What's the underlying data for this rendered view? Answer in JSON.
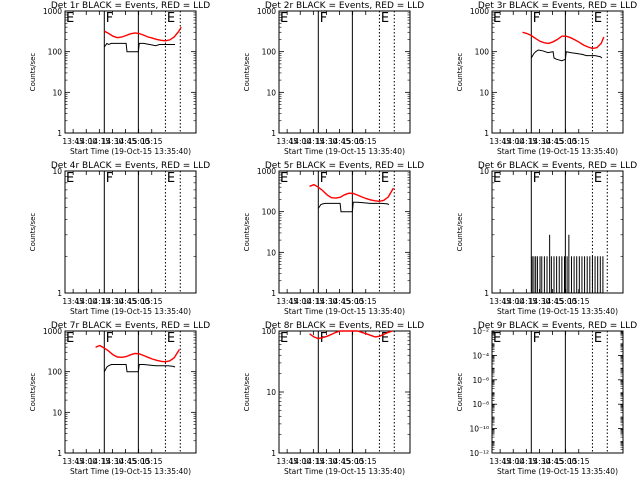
{
  "figure": {
    "x_ticks": [
      "13:45",
      "14:00",
      "14:15",
      "14:30",
      "14:45",
      "15:00",
      "15:15"
    ],
    "x_label": "Start Time (19-Oct-15 13:35:40)",
    "y_label": "Counts/sec",
    "colors": {
      "events": "#000000",
      "lld": "#ff0000"
    }
  },
  "chart_data": [
    {
      "type": "line",
      "title": "Det 1r BLACK = Events, RED = LLD",
      "ylim": [
        1,
        1000
      ],
      "y_ticks": [
        "1",
        "10",
        "100",
        "1000"
      ],
      "log_scale": true,
      "marker_lines": [
        {
          "x": 45,
          "style": "solid",
          "label": "F"
        },
        {
          "x": 84,
          "style": "solid",
          "label": ""
        },
        {
          "x": 115,
          "style": "dotted",
          "label": "E"
        },
        {
          "x": 132,
          "style": "dotted",
          "label": ""
        }
      ],
      "series": [
        {
          "name": "BLACK = Events",
          "color": "#000000",
          "x": [
            45,
            48,
            50,
            53,
            58,
            64,
            70,
            71,
            74,
            80,
            84,
            85,
            90,
            97,
            104,
            108,
            111,
            118,
            124,
            126
          ],
          "y": [
            130,
            160,
            150,
            160,
            160,
            160,
            160,
            100,
            100,
            100,
            100,
            160,
            160,
            150,
            140,
            150,
            150,
            150,
            150,
            150
          ]
        },
        {
          "name": "RED = LLD",
          "color": "#ff0000",
          "x": [
            45,
            50,
            55,
            60,
            65,
            70,
            75,
            80,
            85,
            90,
            95,
            100,
            105,
            110,
            115,
            120,
            125,
            130,
            133
          ],
          "y": [
            320,
            280,
            240,
            220,
            230,
            250,
            275,
            290,
            280,
            255,
            230,
            215,
            200,
            190,
            185,
            195,
            230,
            310,
            400
          ]
        }
      ]
    },
    {
      "type": "line",
      "title": "Det 2r BLACK = Events, RED = LLD",
      "ylim": [
        1,
        1000
      ],
      "y_ticks": [
        "1",
        "10",
        "100",
        "1000"
      ],
      "log_scale": true,
      "marker_lines": [
        {
          "x": 45,
          "style": "solid",
          "label": "F"
        },
        {
          "x": 84,
          "style": "solid",
          "label": ""
        },
        {
          "x": 115,
          "style": "dotted",
          "label": "E"
        },
        {
          "x": 132,
          "style": "dotted",
          "label": ""
        }
      ],
      "series": []
    },
    {
      "type": "line",
      "title": "Det 3r BLACK = Events, RED = LLD",
      "ylim": [
        1,
        1000
      ],
      "y_ticks": [
        "1",
        "10",
        "100",
        "1000"
      ],
      "log_scale": true,
      "marker_lines": [
        {
          "x": 45,
          "style": "solid",
          "label": "F"
        },
        {
          "x": 84,
          "style": "solid",
          "label": ""
        },
        {
          "x": 115,
          "style": "dotted",
          "label": "E"
        },
        {
          "x": 132,
          "style": "dotted",
          "label": ""
        }
      ],
      "series": [
        {
          "name": "BLACK = Events",
          "color": "#000000",
          "x": [
            45,
            48,
            50,
            53,
            58,
            64,
            70,
            71,
            74,
            80,
            84,
            85,
            90,
            97,
            104,
            108,
            111,
            118,
            124,
            126
          ],
          "y": [
            70,
            90,
            100,
            110,
            105,
            95,
            100,
            70,
            65,
            60,
            65,
            100,
            95,
            90,
            85,
            80,
            80,
            80,
            75,
            70
          ]
        },
        {
          "name": "RED = LLD",
          "color": "#ff0000",
          "x": [
            35,
            40,
            45,
            50,
            55,
            60,
            65,
            70,
            75,
            80,
            85,
            90,
            95,
            100,
            105,
            110,
            115,
            120,
            125,
            128
          ],
          "y": [
            300,
            280,
            250,
            210,
            180,
            165,
            160,
            175,
            200,
            240,
            240,
            220,
            195,
            170,
            145,
            130,
            120,
            125,
            160,
            230
          ]
        }
      ]
    },
    {
      "type": "line",
      "title": "Det 4r BLACK = Events, RED = LLD",
      "ylim": [
        1,
        10
      ],
      "y_ticks": [
        "1",
        "10"
      ],
      "log_scale": true,
      "marker_lines": [
        {
          "x": 45,
          "style": "solid",
          "label": "F"
        },
        {
          "x": 84,
          "style": "solid",
          "label": ""
        },
        {
          "x": 115,
          "style": "dotted",
          "label": "E"
        },
        {
          "x": 132,
          "style": "dotted",
          "label": ""
        }
      ],
      "series": []
    },
    {
      "type": "line",
      "title": "Det 5r BLACK = Events, RED = LLD",
      "ylim": [
        1,
        1000
      ],
      "y_ticks": [
        "1",
        "10",
        "100",
        "1000"
      ],
      "log_scale": true,
      "marker_lines": [
        {
          "x": 45,
          "style": "solid",
          "label": "F"
        },
        {
          "x": 84,
          "style": "solid",
          "label": ""
        },
        {
          "x": 115,
          "style": "dotted",
          "label": "E"
        },
        {
          "x": 132,
          "style": "dotted",
          "label": ""
        }
      ],
      "series": [
        {
          "name": "BLACK = Events",
          "color": "#000000",
          "x": [
            45,
            48,
            50,
            53,
            58,
            64,
            70,
            71,
            74,
            80,
            84,
            85,
            90,
            97,
            104,
            108,
            111,
            118,
            124,
            126
          ],
          "y": [
            120,
            150,
            155,
            160,
            160,
            160,
            160,
            100,
            100,
            100,
            100,
            170,
            170,
            165,
            160,
            160,
            160,
            160,
            155,
            150
          ]
        },
        {
          "name": "RED = LLD",
          "color": "#ff0000",
          "x": [
            35,
            40,
            45,
            50,
            55,
            60,
            65,
            70,
            75,
            80,
            85,
            90,
            95,
            100,
            105,
            110,
            115,
            120,
            125,
            131
          ],
          "y": [
            420,
            460,
            400,
            330,
            260,
            220,
            215,
            225,
            260,
            285,
            280,
            255,
            230,
            210,
            195,
            185,
            180,
            190,
            230,
            380
          ]
        }
      ]
    },
    {
      "type": "line",
      "title": "Det 6r BLACK = Events, RED = LLD",
      "ylim": [
        1,
        10
      ],
      "y_ticks": [
        "1",
        "10"
      ],
      "log_scale": true,
      "marker_lines": [
        {
          "x": 45,
          "style": "solid",
          "label": "F"
        },
        {
          "x": 84,
          "style": "solid",
          "label": ""
        },
        {
          "x": 115,
          "style": "dotted",
          "label": "E"
        },
        {
          "x": 132,
          "style": "dotted",
          "label": ""
        }
      ],
      "series": [
        {
          "name": "BLACK = Events",
          "color": "#000000",
          "spikes": true,
          "x": [
            46,
            48,
            50,
            52,
            55,
            57,
            60,
            63,
            66,
            68,
            71,
            74,
            77,
            80,
            83,
            86,
            88,
            91,
            94,
            97,
            100,
            103,
            106,
            109,
            112,
            115,
            118,
            121,
            124,
            127
          ],
          "y": [
            2,
            2,
            2,
            2,
            2,
            2,
            2,
            2,
            3,
            2,
            2,
            2,
            2,
            2,
            2,
            2,
            3,
            2,
            2,
            2,
            2,
            2,
            2,
            2,
            2,
            2,
            2,
            2,
            2,
            2
          ]
        }
      ]
    },
    {
      "type": "line",
      "title": "Det 7r BLACK = Events, RED = LLD",
      "ylim": [
        1,
        1000
      ],
      "y_ticks": [
        "1",
        "10",
        "100",
        "1000"
      ],
      "log_scale": true,
      "marker_lines": [
        {
          "x": 45,
          "style": "solid",
          "label": "F"
        },
        {
          "x": 84,
          "style": "solid",
          "label": ""
        },
        {
          "x": 115,
          "style": "dotted",
          "label": "E"
        },
        {
          "x": 132,
          "style": "dotted",
          "label": ""
        }
      ],
      "series": [
        {
          "name": "BLACK = Events",
          "color": "#000000",
          "x": [
            45,
            48,
            50,
            53,
            58,
            64,
            70,
            71,
            74,
            80,
            84,
            85,
            90,
            97,
            104,
            108,
            111,
            118,
            124,
            126
          ],
          "y": [
            100,
            130,
            140,
            150,
            150,
            150,
            150,
            100,
            100,
            100,
            100,
            150,
            150,
            145,
            140,
            140,
            140,
            140,
            135,
            130
          ]
        },
        {
          "name": "RED = LLD",
          "color": "#ff0000",
          "x": [
            35,
            40,
            45,
            50,
            55,
            60,
            65,
            70,
            75,
            80,
            85,
            90,
            95,
            100,
            105,
            110,
            115,
            120,
            125,
            131
          ],
          "y": [
            400,
            440,
            380,
            320,
            260,
            230,
            225,
            235,
            260,
            280,
            275,
            250,
            225,
            205,
            190,
            180,
            175,
            185,
            220,
            350
          ]
        }
      ]
    },
    {
      "type": "line",
      "title": "Det 8r BLACK = Events, RED = LLD",
      "ylim": [
        1,
        100
      ],
      "y_ticks": [
        "1",
        "10",
        "100"
      ],
      "log_scale": true,
      "marker_lines": [
        {
          "x": 45,
          "style": "solid",
          "label": "F"
        },
        {
          "x": 84,
          "style": "solid",
          "label": ""
        },
        {
          "x": 115,
          "style": "dotted",
          "label": "E"
        },
        {
          "x": 132,
          "style": "dotted",
          "label": ""
        }
      ],
      "series": [
        {
          "name": "RED = LLD",
          "color": "#ff0000",
          "x": [
            35,
            40,
            45,
            50,
            55,
            60,
            65,
            70,
            75,
            80,
            85,
            90,
            95,
            100,
            105,
            110,
            115,
            120,
            125,
            130
          ],
          "y": [
            90,
            80,
            75,
            78,
            82,
            88,
            95,
            100,
            100,
            100,
            100,
            100,
            95,
            90,
            85,
            80,
            82,
            88,
            95,
            100
          ]
        }
      ]
    },
    {
      "type": "line",
      "title": "Det 9r BLACK = Events, RED = LLD",
      "ylim": [
        1e-12,
        0.01
      ],
      "y_ticks": [
        "10⁻¹²",
        "10⁻¹⁰",
        "10⁻⁸",
        "10⁻⁶",
        "10⁻⁴",
        "10⁻²"
      ],
      "log_scale": true,
      "marker_lines": [
        {
          "x": 45,
          "style": "solid",
          "label": "F"
        },
        {
          "x": 84,
          "style": "solid",
          "label": ""
        },
        {
          "x": 115,
          "style": "dotted",
          "label": "E"
        },
        {
          "x": 132,
          "style": "dotted",
          "label": ""
        }
      ],
      "series": []
    }
  ]
}
